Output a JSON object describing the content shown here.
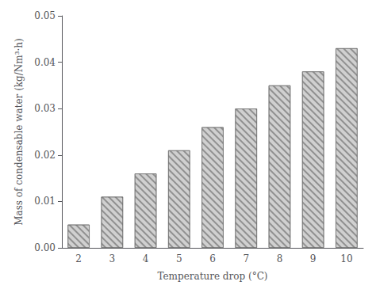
{
  "chart_data": {
    "type": "bar",
    "xlabel": "Temperature drop (°C)",
    "ylabel": "Mass of condensable water (kg/Nm³·h)",
    "categories": [
      "2",
      "3",
      "4",
      "5",
      "6",
      "7",
      "8",
      "9",
      "10"
    ],
    "values": [
      0.005,
      0.011,
      0.016,
      0.021,
      0.026,
      0.03,
      0.035,
      0.038,
      0.043
    ],
    "color": "#d0d0d0",
    "ylim": [
      0,
      0.05
    ],
    "yticks": [
      {
        "value": 0,
        "label": "0.00"
      },
      0.01,
      0.02,
      0.03,
      0.04,
      0.05
    ],
    "grid": false
  }
}
